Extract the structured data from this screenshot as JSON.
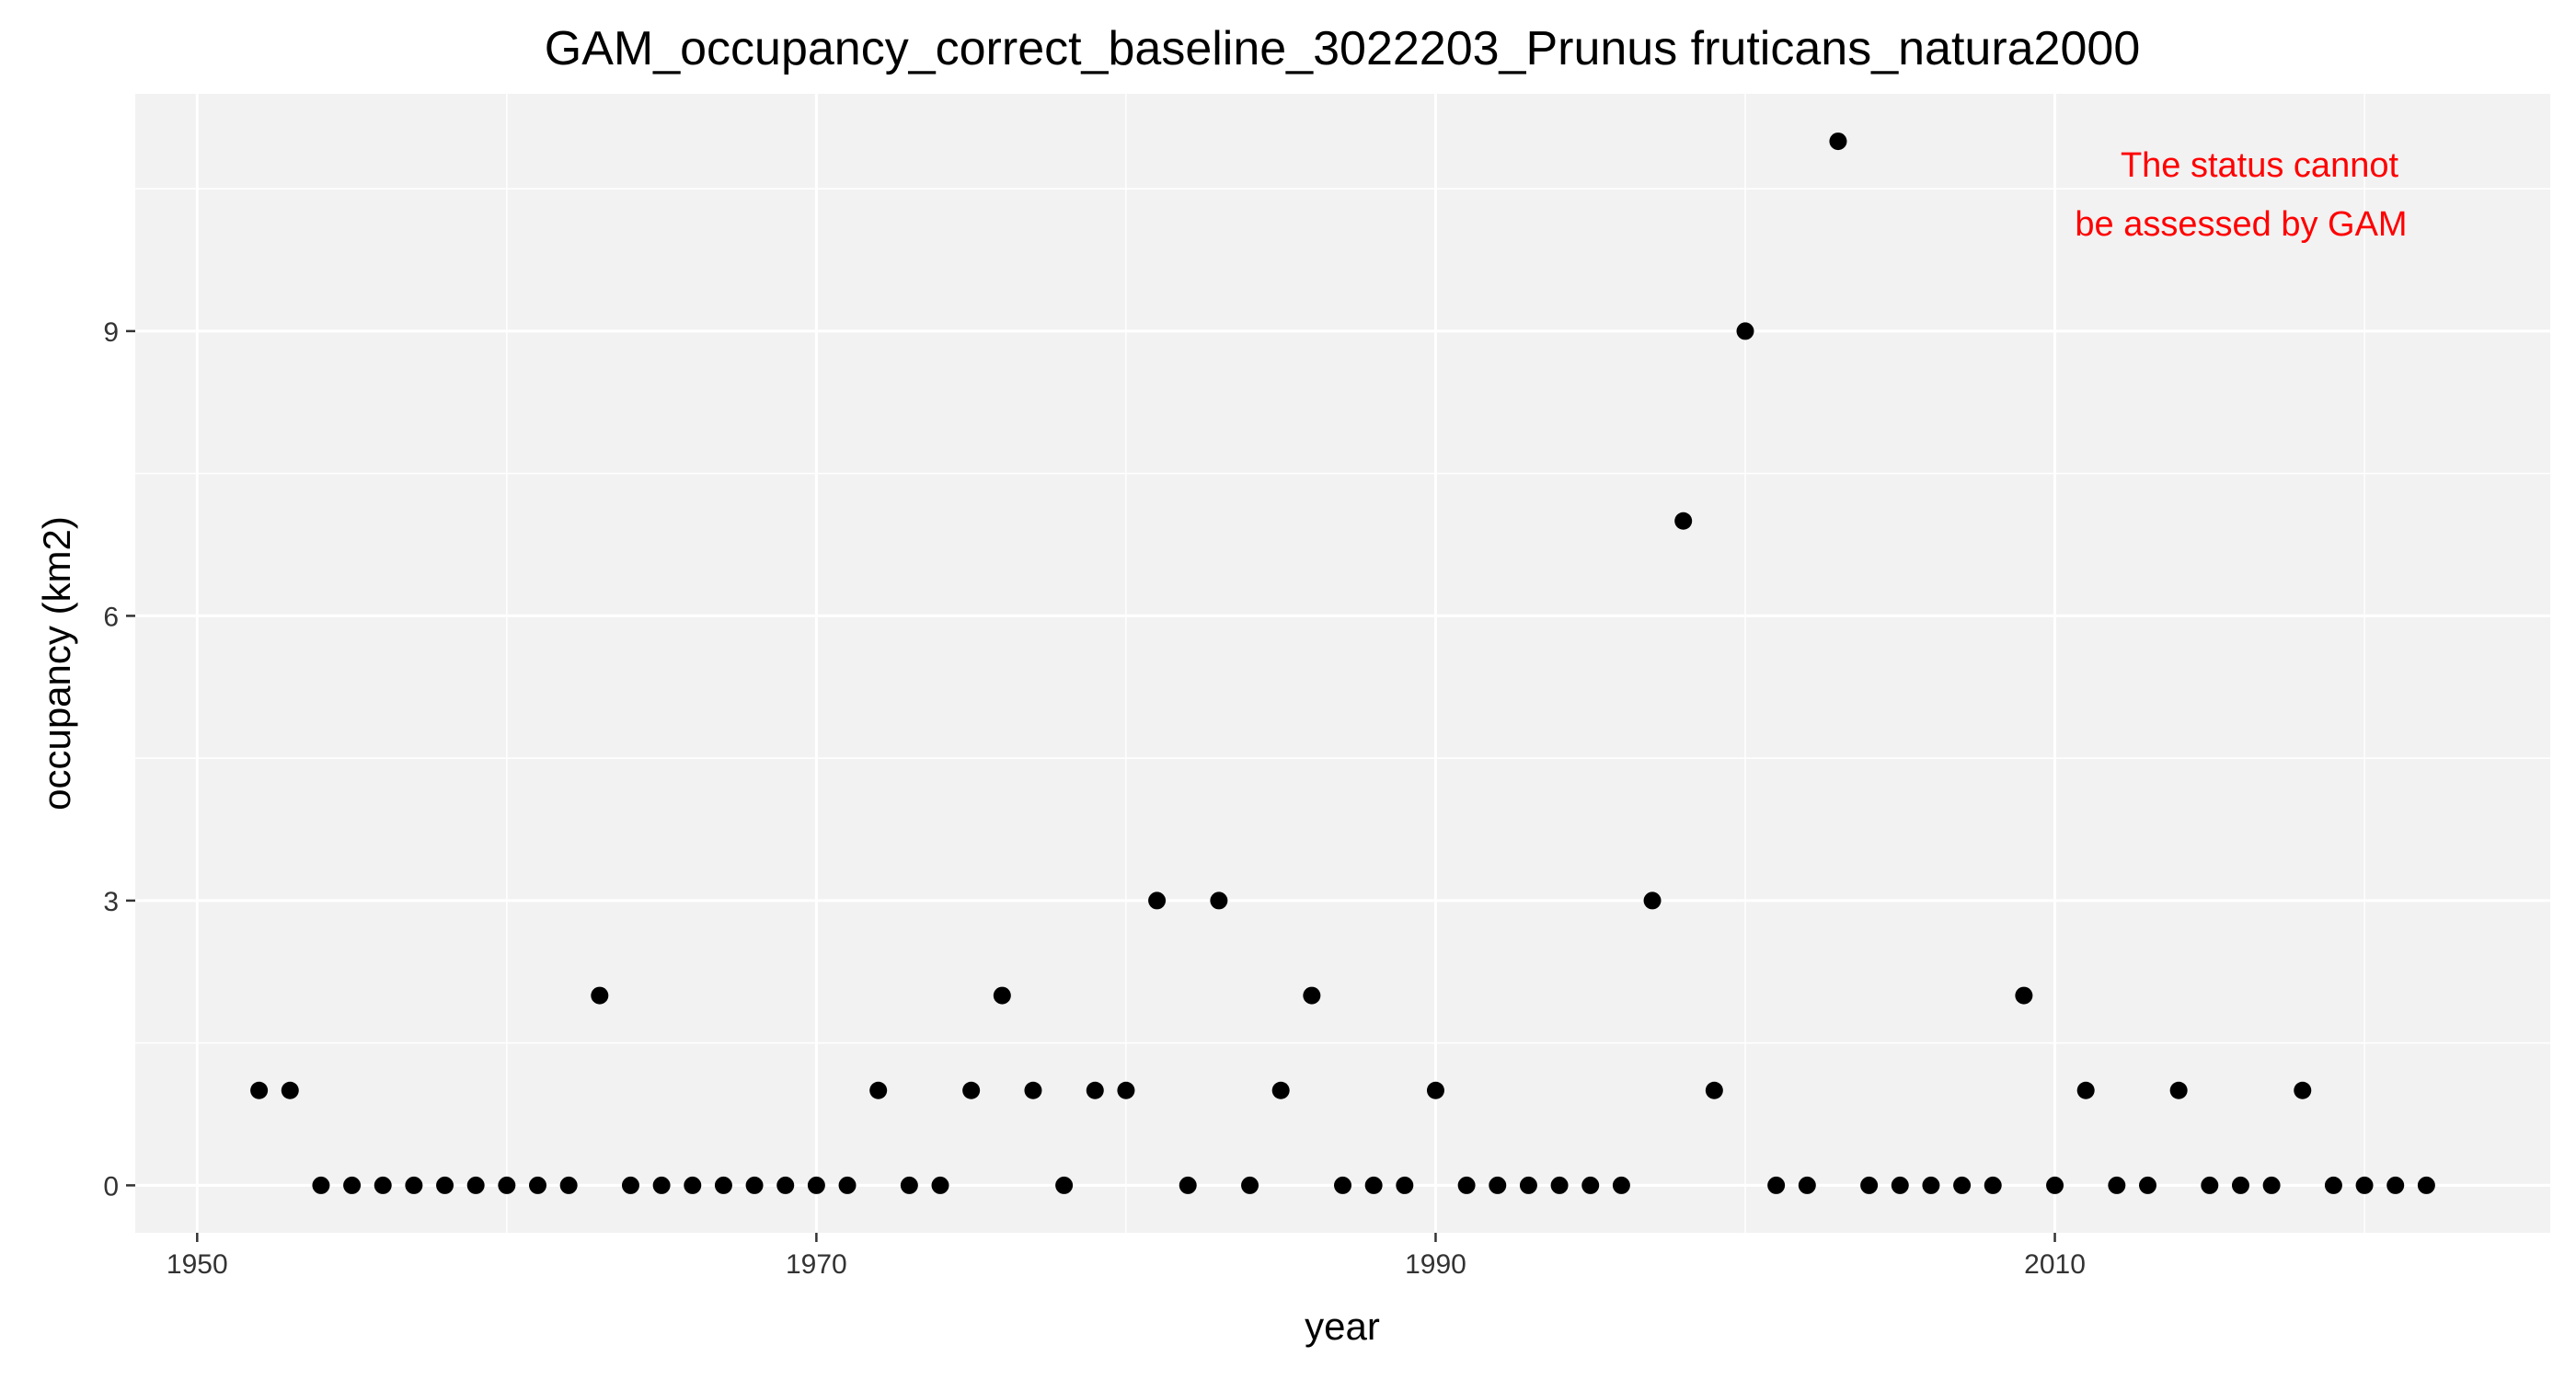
{
  "chart_data": {
    "type": "scatter",
    "title": "GAM_occupancy_correct_baseline_3022203_Prunus fruticans_natura2000",
    "xlabel": "year",
    "ylabel": "occupancy (km2)",
    "xlim": [
      1948,
      2026
    ],
    "ylim": [
      -0.5,
      11.5
    ],
    "x_ticks": [
      1950,
      1970,
      1990,
      2010
    ],
    "y_ticks": [
      0,
      3,
      6,
      9
    ],
    "grid": true,
    "point_color": "#000000",
    "panel_background": "#f2f2f2",
    "annotation": {
      "lines": [
        "The status cannot",
        "be assessed by GAM"
      ],
      "color": "#ff0000",
      "placement": "top-right"
    },
    "x": [
      1952,
      1953,
      1954,
      1955,
      1956,
      1957,
      1958,
      1959,
      1960,
      1961,
      1962,
      1963,
      1964,
      1965,
      1966,
      1967,
      1968,
      1969,
      1970,
      1971,
      1972,
      1973,
      1974,
      1975,
      1976,
      1977,
      1978,
      1979,
      1980,
      1981,
      1982,
      1983,
      1984,
      1985,
      1986,
      1987,
      1988,
      1989,
      1990,
      1991,
      1992,
      1993,
      1994,
      1995,
      1996,
      1997,
      1998,
      1999,
      2000,
      2001,
      2002,
      2003,
      2004,
      2005,
      2006,
      2007,
      2008,
      2009,
      2010,
      2011,
      2012,
      2013,
      2014,
      2015,
      2016,
      2017,
      2018,
      2019,
      2020,
      2021,
      2022
    ],
    "y": [
      1,
      1,
      0,
      0,
      0,
      0,
      0,
      0,
      0,
      0,
      0,
      2,
      0,
      0,
      0,
      0,
      0,
      0,
      0,
      0,
      1,
      0,
      0,
      1,
      2,
      1,
      0,
      1,
      1,
      3,
      0,
      3,
      0,
      1,
      2,
      0,
      0,
      0,
      1,
      0,
      0,
      0,
      0,
      0,
      0,
      3,
      7,
      1,
      9,
      0,
      0,
      11,
      0,
      0,
      0,
      0,
      0,
      2,
      0,
      1,
      0,
      0,
      1,
      0,
      0,
      0,
      1,
      0,
      0,
      0,
      0
    ]
  }
}
